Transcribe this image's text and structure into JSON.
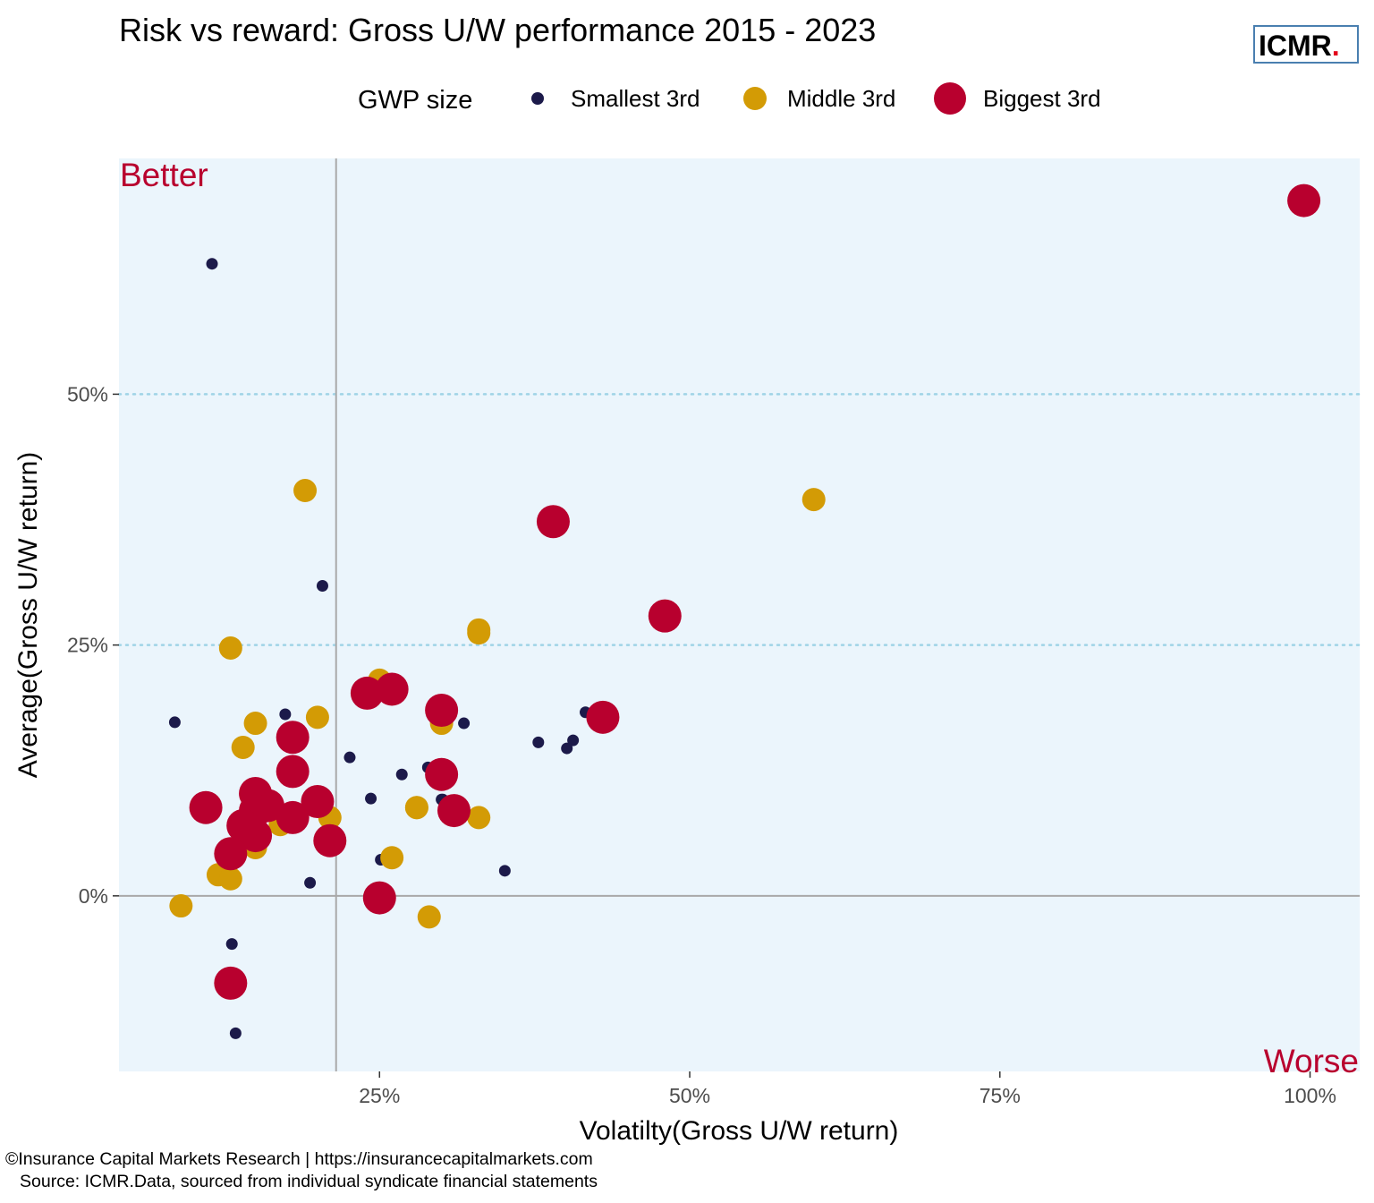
{
  "colors": {
    "panel": "#ebf5fc",
    "smallest": "#1c1a4a",
    "middle": "#d39b05",
    "biggest": "#b8002e",
    "corner_text": "#b8002e",
    "logo_border": "#4a7fb0",
    "logo_dot": "#e3001b",
    "ref_line": "#a9a9a9",
    "grid": "#9fd3e6"
  },
  "logo": {
    "text": "ICMR",
    "dot": "."
  },
  "caption": {
    "line1": "©Insurance Capital Markets Research | https://insurancecapitalmarkets.com",
    "line2": "Source: ICMR.Data, sourced from individual syndicate financial statements"
  },
  "chart_data": {
    "type": "scatter",
    "title": "Risk vs reward: Gross U/W performance 2015 - 2023",
    "xlabel": "Volatilty(Gross U/W return)",
    "ylabel": "Average(Gross U/W return)",
    "xlim": [
      0.04,
      1.04
    ],
    "ylim": [
      -0.175,
      0.735
    ],
    "x_ticks": [
      0.25,
      0.5,
      0.75,
      1.0
    ],
    "x_tick_labels": [
      "25%",
      "50%",
      "75%",
      "100%"
    ],
    "y_ticks": [
      0.0,
      0.25,
      0.5
    ],
    "y_tick_labels": [
      "0%",
      "25%",
      "50%"
    ],
    "grid": "dotted horizontal at 25% and 50%",
    "reference_lines": {
      "vertical_x": 0.215,
      "horizontal_y": 0.0
    },
    "annotations": {
      "top_left": "Better",
      "bottom_right": "Worse"
    },
    "legend": {
      "title": "GWP size",
      "placement": "top",
      "entries": [
        "Smallest 3rd",
        "Middle 3rd",
        "Biggest 3rd"
      ]
    },
    "series": [
      {
        "name": "Smallest 3rd",
        "x": [
          0.115,
          0.085,
          0.174,
          0.133,
          0.204,
          0.226,
          0.268,
          0.289,
          0.301,
          0.318,
          0.3,
          0.378,
          0.406,
          0.401,
          0.416,
          0.243,
          0.212,
          0.194,
          0.251,
          0.351,
          0.131,
          0.134
        ],
        "y": [
          0.63,
          0.173,
          0.181,
          0.076,
          0.309,
          0.138,
          0.121,
          0.128,
          0.096,
          0.172,
          0.096,
          0.153,
          0.155,
          0.147,
          0.183,
          0.097,
          0.06,
          0.013,
          0.036,
          0.025,
          -0.048,
          -0.137
        ]
      },
      {
        "name": "Middle 3rd",
        "x": [
          0.19,
          0.6,
          0.13,
          0.33,
          0.33,
          0.25,
          0.15,
          0.14,
          0.2,
          0.3,
          0.28,
          0.28,
          0.33,
          0.12,
          0.13,
          0.17,
          0.16,
          0.15,
          0.26,
          0.29,
          0.09,
          0.21
        ],
        "y": [
          0.404,
          0.395,
          0.247,
          0.265,
          0.262,
          0.215,
          0.172,
          0.148,
          0.178,
          0.172,
          0.088,
          0.088,
          0.078,
          0.021,
          0.017,
          0.071,
          0.089,
          0.048,
          0.038,
          -0.021,
          -0.01,
          0.078
        ]
      },
      {
        "name": "Biggest 3rd",
        "x": [
          0.995,
          0.39,
          0.48,
          0.43,
          0.24,
          0.26,
          0.3,
          0.3,
          0.31,
          0.18,
          0.18,
          0.16,
          0.11,
          0.15,
          0.15,
          0.15,
          0.14,
          0.13,
          0.2,
          0.18,
          0.21,
          0.25,
          0.13
        ],
        "y": [
          0.693,
          0.373,
          0.279,
          0.178,
          0.202,
          0.206,
          0.185,
          0.121,
          0.085,
          0.158,
          0.124,
          0.09,
          0.088,
          0.102,
          0.085,
          0.06,
          0.07,
          0.042,
          0.094,
          0.078,
          0.055,
          -0.002,
          -0.087
        ]
      }
    ]
  }
}
